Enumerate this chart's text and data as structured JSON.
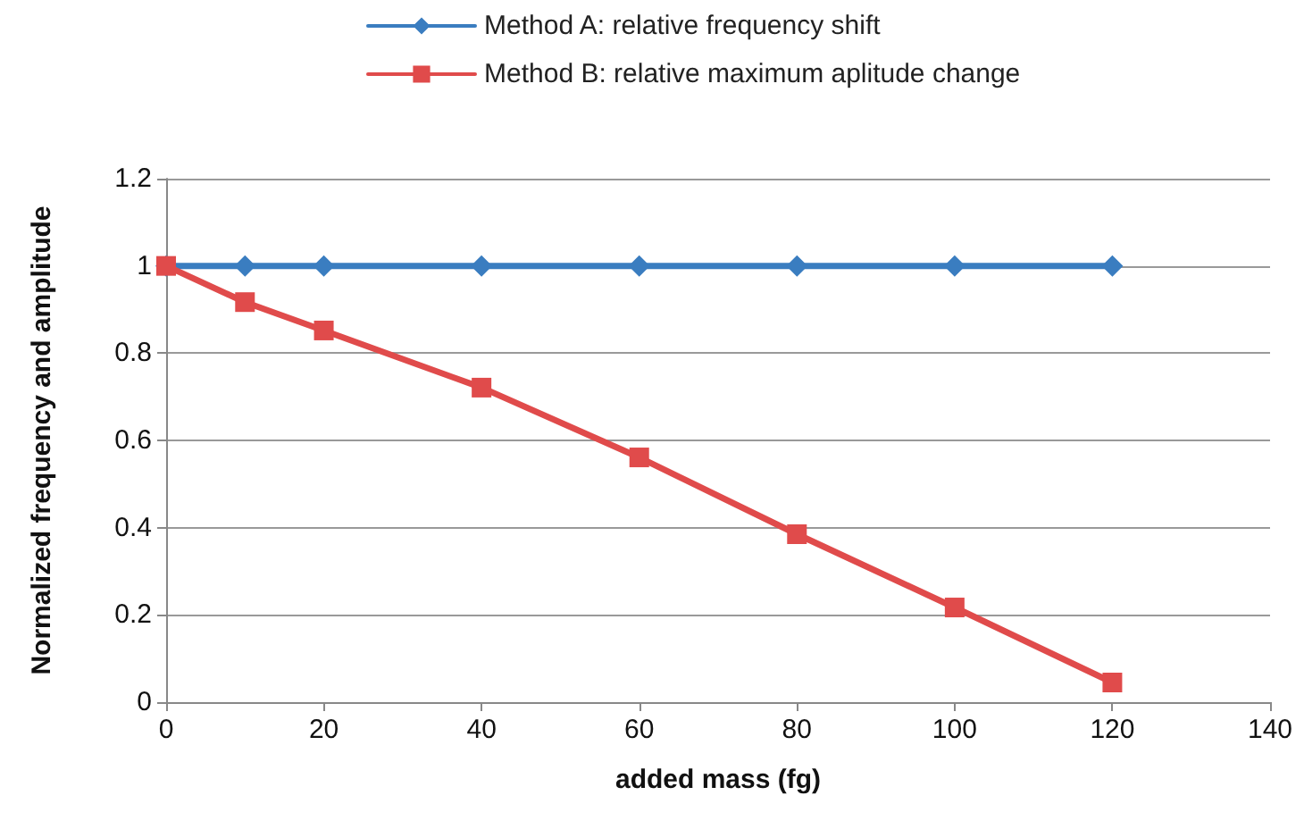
{
  "chart_data": {
    "type": "line",
    "xlabel": "added mass (fg)",
    "ylabel": "Normalized frequency and amplitude",
    "x": [
      0,
      10,
      20,
      40,
      60,
      80,
      100,
      120
    ],
    "series": [
      {
        "name": "Method A: relative frequency shift",
        "color": "#3a7dc0",
        "marker": "diamond",
        "values": [
          1,
          1,
          1,
          1,
          1,
          1,
          1,
          1
        ]
      },
      {
        "name": "Method B: relative maximum aplitude change",
        "color": "#e04b4b",
        "marker": "square",
        "values": [
          1,
          0.917,
          0.852,
          0.721,
          0.561,
          0.385,
          0.217,
          0.045
        ]
      }
    ],
    "xlim": [
      0,
      140
    ],
    "xticks": [
      0,
      20,
      40,
      60,
      80,
      100,
      120,
      140
    ],
    "ylim": [
      0,
      1.2
    ],
    "yticks": [
      0,
      0.2,
      0.4,
      0.6,
      0.8,
      1,
      1.2
    ],
    "grid": "y",
    "legend": "top"
  }
}
